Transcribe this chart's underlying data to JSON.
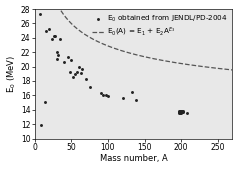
{
  "title": "",
  "xlabel": "Mass number, A",
  "ylabel": "E$_0$ (MeV)",
  "xlim": [
    0,
    270
  ],
  "ylim": [
    10,
    28
  ],
  "yticks": [
    10,
    12,
    14,
    16,
    18,
    20,
    22,
    24,
    26,
    28
  ],
  "xticks": [
    0,
    50,
    100,
    150,
    200,
    250
  ],
  "scatter_x": [
    7,
    9,
    14,
    16,
    20,
    24,
    27,
    28,
    30,
    31,
    32,
    35,
    40,
    45,
    48,
    50,
    52,
    55,
    58,
    60,
    63,
    65,
    70,
    75,
    90,
    93,
    98,
    100,
    120,
    133,
    138,
    197,
    197,
    197,
    198,
    198,
    199,
    199,
    200,
    200,
    201,
    201,
    202,
    203,
    208
  ],
  "scatter_y": [
    27.3,
    11.9,
    15.1,
    24.9,
    25.2,
    23.8,
    24.2,
    24.3,
    21.1,
    22.0,
    21.6,
    23.9,
    20.7,
    21.3,
    19.2,
    20.9,
    18.5,
    19.0,
    19.2,
    19.9,
    19.1,
    19.7,
    18.3,
    17.1,
    16.3,
    16.0,
    16.0,
    15.9,
    15.6,
    16.5,
    15.4,
    13.8,
    13.7,
    13.6,
    13.7,
    13.6,
    13.8,
    13.7,
    13.8,
    13.6,
    13.7,
    13.8,
    13.8,
    13.7,
    13.6
  ],
  "fit_E1": 11.5,
  "fit_E2": 57.0,
  "fit_E3": -0.35,
  "legend_label_scatter": "E$_0$ obtained from JENDL/PD-2004",
  "legend_label_fit": "E$_0$(A) = E$_1$ + E$_2$A$^{E_3}$",
  "scatter_color": "#222222",
  "fit_color": "#555555",
  "bg_color": "#ffffff",
  "plot_bg_color": "#e8e8e8",
  "font_size": 6.0,
  "legend_font_size": 5.2,
  "tick_label_size": 5.5
}
